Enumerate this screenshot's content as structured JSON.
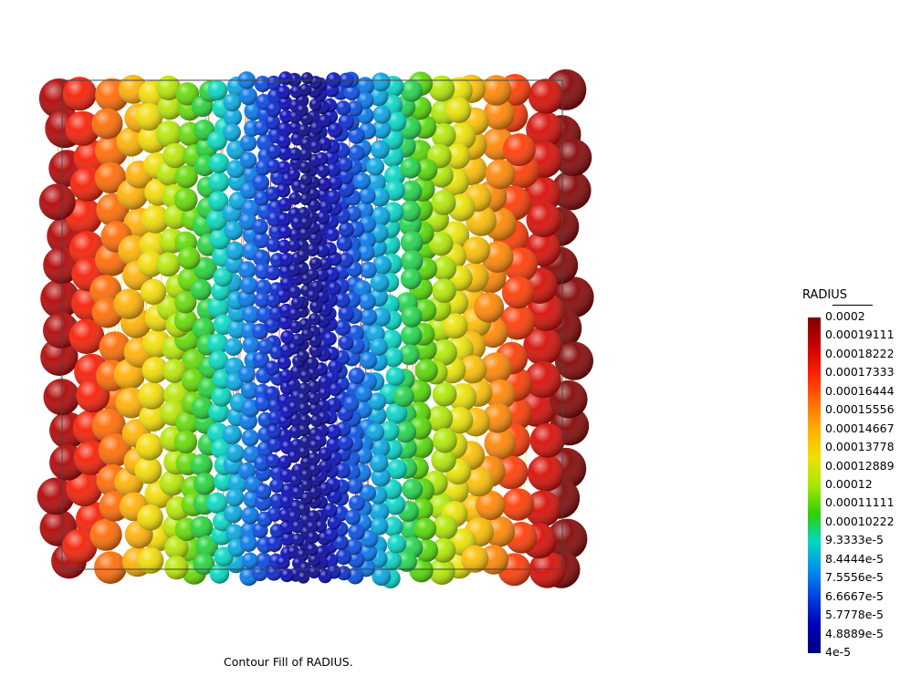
{
  "colormap": {
    "variable": "RADIUS",
    "labels": [
      "0.0002",
      "0.00019111",
      "0.00018222",
      "0.00017333",
      "0.00016444",
      "0.00015556",
      "0.00014667",
      "0.00013778",
      "0.00012889",
      "0.00012",
      "0.00011111",
      "0.00010222",
      "9.3333e-5",
      "8.4444e-5",
      "7.5556e-5",
      "6.6667e-5",
      "5.7778e-5",
      "4.8889e-5",
      "4e-5"
    ],
    "colors": [
      "#7f0000",
      "#c80000",
      "#ff2000",
      "#ff6a00",
      "#ffb000",
      "#f0e000",
      "#a8e800",
      "#30d000",
      "#00d8c0",
      "#0090f0",
      "#0040e0",
      "#0000b8",
      "#00007f"
    ]
  },
  "caption": "Contour Fill of RADIUS."
}
